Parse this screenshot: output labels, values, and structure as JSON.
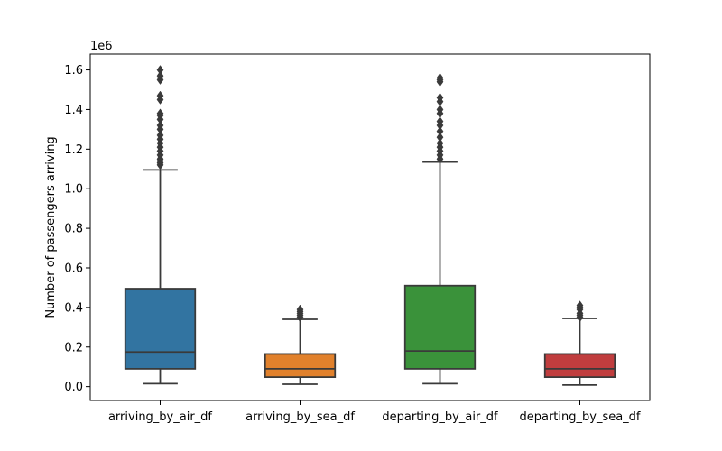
{
  "chart_data": {
    "type": "box",
    "ylabel": "Number of passengers arriving",
    "offset_label": "1e6",
    "ylim": [
      -0.07,
      1.68
    ],
    "yticks": [
      0.0,
      0.2,
      0.4,
      0.6,
      0.8,
      1.0,
      1.2,
      1.4,
      1.6
    ],
    "ytick_labels": [
      "0.0",
      "0.2",
      "0.4",
      "0.6",
      "0.8",
      "1.0",
      "1.2",
      "1.4",
      "1.6"
    ],
    "categories": [
      "arriving_by_air_df",
      "arriving_by_sea_df",
      "departing_by_air_df",
      "departing_by_sea_df"
    ],
    "boxes": [
      {
        "name": "arriving_by_air_df",
        "color": "#3274a1",
        "whisker_low": 0.015,
        "q1": 0.09,
        "median": 0.175,
        "q3": 0.495,
        "whisker_high": 1.095,
        "outliers": [
          1.12,
          1.13,
          1.14,
          1.15,
          1.17,
          1.19,
          1.21,
          1.23,
          1.25,
          1.27,
          1.3,
          1.32,
          1.35,
          1.37,
          1.38,
          1.45,
          1.47,
          1.55,
          1.57,
          1.6
        ]
      },
      {
        "name": "arriving_by_sea_df",
        "color": "#e1812c",
        "whisker_low": 0.012,
        "q1": 0.048,
        "median": 0.09,
        "q3": 0.165,
        "whisker_high": 0.34,
        "outliers": [
          0.35,
          0.36,
          0.37,
          0.38,
          0.39
        ]
      },
      {
        "name": "departing_by_air_df",
        "color": "#3a923a",
        "whisker_low": 0.015,
        "q1": 0.09,
        "median": 0.18,
        "q3": 0.51,
        "whisker_high": 1.135,
        "outliers": [
          1.15,
          1.17,
          1.19,
          1.21,
          1.23,
          1.26,
          1.29,
          1.32,
          1.34,
          1.38,
          1.4,
          1.44,
          1.46,
          1.54,
          1.55,
          1.56
        ]
      },
      {
        "name": "departing_by_sea_df",
        "color": "#c03d3e",
        "whisker_low": 0.008,
        "q1": 0.048,
        "median": 0.09,
        "q3": 0.165,
        "whisker_high": 0.345,
        "outliers": [
          0.35,
          0.36,
          0.37,
          0.39,
          0.4,
          0.41
        ]
      }
    ]
  }
}
